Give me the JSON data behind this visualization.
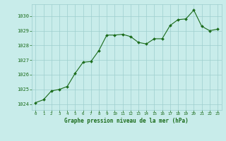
{
  "x": [
    0,
    1,
    2,
    3,
    4,
    5,
    6,
    7,
    8,
    9,
    10,
    11,
    12,
    13,
    14,
    15,
    16,
    17,
    18,
    19,
    20,
    21,
    22,
    23
  ],
  "y": [
    1024.1,
    1024.3,
    1024.9,
    1025.0,
    1025.2,
    1026.1,
    1026.85,
    1026.9,
    1027.65,
    1028.7,
    1028.7,
    1028.75,
    1028.6,
    1028.2,
    1028.1,
    1028.45,
    1028.45,
    1029.35,
    1029.75,
    1029.8,
    1030.4,
    1029.3,
    1029.0,
    1029.1
  ],
  "xlim": [
    -0.5,
    23.5
  ],
  "ylim": [
    1023.6,
    1030.8
  ],
  "yticks": [
    1024,
    1025,
    1026,
    1027,
    1028,
    1029,
    1030
  ],
  "xticks": [
    0,
    1,
    2,
    3,
    4,
    5,
    6,
    7,
    8,
    9,
    10,
    11,
    12,
    13,
    14,
    15,
    16,
    17,
    18,
    19,
    20,
    21,
    22,
    23
  ],
  "xlabel": "Graphe pression niveau de la mer (hPa)",
  "line_color": "#1a6b1a",
  "marker_color": "#1a6b1a",
  "bg_color": "#c8ecea",
  "grid_color": "#9ecece",
  "tick_label_color": "#1a6b1a",
  "label_color": "#1a6b1a"
}
